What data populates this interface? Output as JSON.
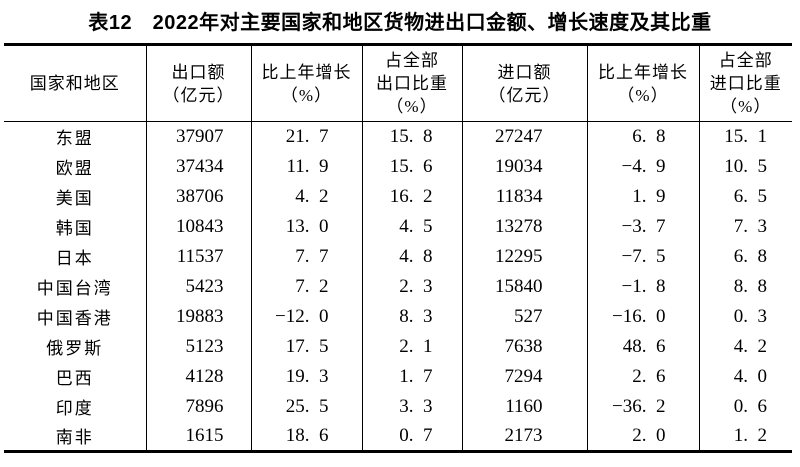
{
  "page": {
    "background_color": "#ffffff",
    "text_color": "#000000",
    "rule_color": "#000000"
  },
  "title": "表12　2022年对主要国家和地区货物进出口金额、增长速度及其比重",
  "table": {
    "columns": [
      {
        "key": "region",
        "label": "国家和地区"
      },
      {
        "key": "export_value",
        "label": "出口额\n（亿元）"
      },
      {
        "key": "export_growth",
        "label": "比上年增长\n（%）"
      },
      {
        "key": "export_share",
        "label": "占全部\n出口比重\n（%）"
      },
      {
        "key": "import_value",
        "label": "进口额\n（亿元）"
      },
      {
        "key": "import_growth",
        "label": "比上年增长\n（%）"
      },
      {
        "key": "import_share",
        "label": "占全部\n进口比重\n（%）"
      }
    ],
    "rows": [
      [
        "东盟",
        "37907",
        "21.7",
        "15.8",
        "27247",
        "6.8",
        "15.1"
      ],
      [
        "欧盟",
        "37434",
        "11.9",
        "15.6",
        "19034",
        "-4.9",
        "10.5"
      ],
      [
        "美国",
        "38706",
        "4.2",
        "16.2",
        "11834",
        "1.9",
        "6.5"
      ],
      [
        "韩国",
        "10843",
        "13.0",
        "4.5",
        "13278",
        "-3.7",
        "7.3"
      ],
      [
        "日本",
        "11537",
        "7.7",
        "4.8",
        "12295",
        "-7.5",
        "6.8"
      ],
      [
        "中国台湾",
        "5423",
        "7.2",
        "2.3",
        "15840",
        "-1.8",
        "8.8"
      ],
      [
        "中国香港",
        "19883",
        "-12.0",
        "8.3",
        "527",
        "-16.0",
        "0.3"
      ],
      [
        "俄罗斯",
        "5123",
        "17.5",
        "2.1",
        "7638",
        "48.6",
        "4.2"
      ],
      [
        "巴西",
        "4128",
        "19.3",
        "1.7",
        "7294",
        "2.6",
        "4.0"
      ],
      [
        "印度",
        "7896",
        "25.5",
        "3.3",
        "1160",
        "-36.2",
        "0.6"
      ],
      [
        "南非",
        "1615",
        "18.6",
        "0.7",
        "2173",
        "2.0",
        "1.2"
      ]
    ]
  }
}
